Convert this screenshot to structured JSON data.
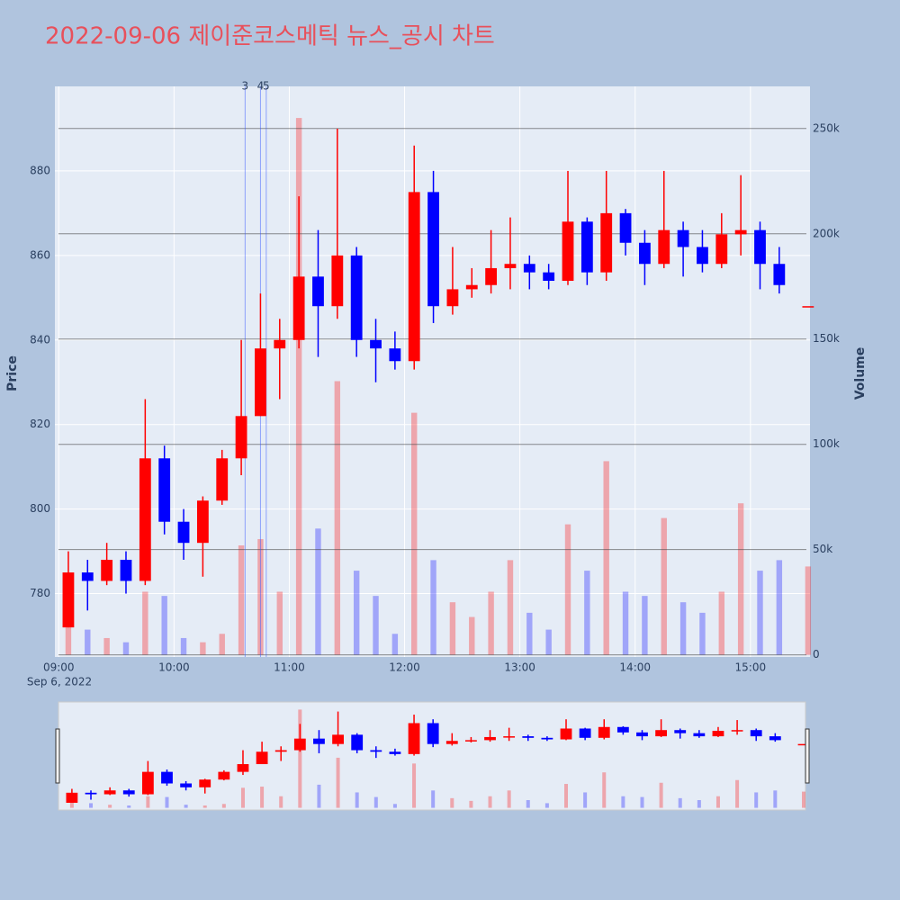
{
  "chart_data": {
    "type": "candlestick",
    "title": "2022-09-06 제이준코스메틱 뉴스_공시 차트",
    "x_date_label": "Sep 6, 2022",
    "y_title": "Price",
    "y2_title": "Volume",
    "increasing_color": "#ff0000",
    "decreasing_color": "#0000ff",
    "x": [
      "09:00",
      "09:10",
      "09:20",
      "09:30",
      "09:40",
      "09:50",
      "10:00",
      "10:10",
      "10:20",
      "10:30",
      "10:40",
      "10:50",
      "11:00",
      "11:10",
      "11:20",
      "11:30",
      "11:40",
      "11:50",
      "12:00",
      "12:10",
      "12:20",
      "12:30",
      "12:40",
      "12:50",
      "13:00",
      "13:10",
      "13:20",
      "13:30",
      "13:40",
      "13:50",
      "14:00",
      "14:10",
      "14:20",
      "14:30",
      "14:40",
      "14:50",
      "15:00",
      "15:10",
      "15:25"
    ],
    "open": [
      772,
      785,
      783,
      788,
      783,
      812,
      797,
      792,
      802,
      812,
      822,
      838,
      840,
      855,
      848,
      860,
      840,
      838,
      835,
      875,
      848,
      852,
      853,
      857,
      858,
      856,
      854,
      868,
      856,
      870,
      863,
      858,
      866,
      862,
      858,
      865,
      866,
      858,
      848
    ],
    "high": [
      790,
      788,
      792,
      790,
      826,
      815,
      800,
      803,
      814,
      840,
      851,
      845,
      874,
      866,
      890,
      862,
      845,
      842,
      886,
      880,
      862,
      857,
      866,
      869,
      860,
      858,
      880,
      869,
      880,
      871,
      866,
      880,
      868,
      866,
      870,
      879,
      868,
      862,
      848
    ],
    "low": [
      772,
      776,
      782,
      780,
      782,
      794,
      788,
      784,
      801,
      808,
      822,
      826,
      838,
      836,
      845,
      836,
      830,
      833,
      833,
      844,
      846,
      850,
      851,
      852,
      852,
      852,
      853,
      853,
      854,
      860,
      853,
      857,
      855,
      856,
      857,
      860,
      852,
      851,
      848
    ],
    "close": [
      785,
      783,
      788,
      783,
      812,
      797,
      792,
      802,
      812,
      822,
      838,
      840,
      855,
      848,
      860,
      840,
      838,
      835,
      875,
      848,
      852,
      853,
      857,
      858,
      856,
      854,
      868,
      856,
      870,
      863,
      858,
      866,
      862,
      858,
      865,
      866,
      858,
      853,
      848
    ],
    "volume": [
      20000,
      12000,
      8000,
      6000,
      30000,
      28000,
      8000,
      6000,
      10000,
      52000,
      55000,
      30000,
      255000,
      60000,
      130000,
      40000,
      28000,
      10000,
      115000,
      45000,
      25000,
      18000,
      30000,
      45000,
      20000,
      12000,
      62000,
      40000,
      92000,
      30000,
      28000,
      65000,
      25000,
      20000,
      30000,
      72000,
      40000,
      45000,
      42000
    ],
    "xlim": [
      "08:58",
      "15:31"
    ],
    "xticks": [
      "09:00",
      "10:00",
      "11:00",
      "12:00",
      "13:00",
      "14:00",
      "15:00"
    ],
    "ylim": [
      765,
      900
    ],
    "yticks": [
      780,
      800,
      820,
      840,
      860,
      880
    ],
    "y2lim": [
      -1000,
      270000
    ],
    "y2ticks": [
      0,
      {
        "value": 50000,
        "label": "50k"
      },
      {
        "value": 100000,
        "label": "100k"
      },
      {
        "value": 150000,
        "label": "150k"
      },
      {
        "value": 200000,
        "label": "200k"
      },
      {
        "value": 250000,
        "label": "250k"
      }
    ],
    "vlines": [
      {
        "x": "10:37",
        "label": "3"
      },
      {
        "x": "10:45",
        "label": "4"
      },
      {
        "x": "10:48",
        "label": "5"
      }
    ],
    "grid": true,
    "range_slider": true
  }
}
